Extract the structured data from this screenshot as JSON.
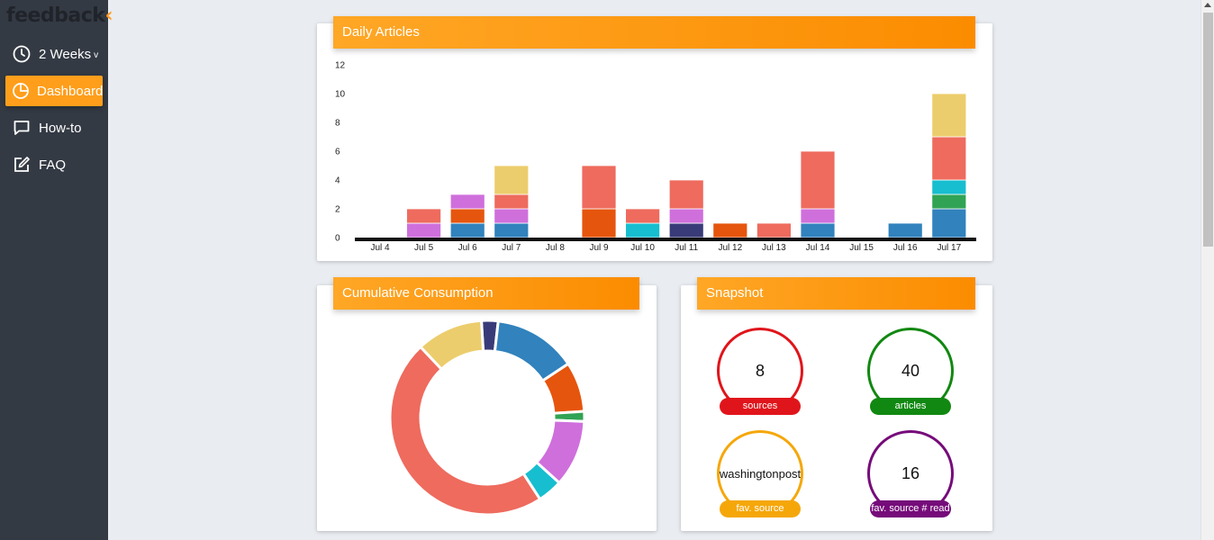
{
  "app": {
    "logo_main": "feedback",
    "logo_accent": "‹"
  },
  "sidebar": {
    "items": [
      {
        "label": "2 Weeks",
        "caret": "v",
        "icon": "clock-icon"
      },
      {
        "label": "Dashboard",
        "icon": "pie-chart-icon",
        "active": true
      },
      {
        "label": "How-to",
        "icon": "chat-bubble-icon"
      },
      {
        "label": "FAQ",
        "icon": "edit-icon"
      }
    ]
  },
  "colors": {
    "accent": "#ff9e1b",
    "sidebar_bg": "#343a44",
    "series": [
      "#3182bd",
      "#e6550d",
      "#31a354",
      "#17becf",
      "#cf6fdc",
      "#ee6b5e",
      "#eccd6d",
      "#393b79"
    ]
  },
  "daily_articles": {
    "title": "Daily Articles",
    "chart_data": {
      "type": "bar",
      "stacked": true,
      "title": "Daily Articles",
      "ylim": [
        0,
        12
      ],
      "yticks": [
        0,
        2,
        4,
        6,
        8,
        10,
        12
      ],
      "categories": [
        "Jul 4",
        "Jul 5",
        "Jul 6",
        "Jul 7",
        "Jul 8",
        "Jul 9",
        "Jul 10",
        "Jul 11",
        "Jul 12",
        "Jul 13",
        "Jul 14",
        "Jul 15",
        "Jul 16",
        "Jul 17"
      ],
      "series": [
        {
          "color": "#3182bd",
          "values": [
            0,
            0,
            1,
            1,
            0,
            0,
            0,
            0,
            0,
            0,
            1,
            0,
            1,
            2
          ]
        },
        {
          "color": "#393b79",
          "values": [
            0,
            0,
            0,
            0,
            0,
            0,
            0,
            1,
            0,
            0,
            0,
            0,
            0,
            0
          ]
        },
        {
          "color": "#e6550d",
          "values": [
            0,
            0,
            1,
            0,
            0,
            2,
            0,
            0,
            1,
            0,
            0,
            0,
            0,
            0
          ]
        },
        {
          "color": "#31a354",
          "values": [
            0,
            0,
            0,
            0,
            0,
            0,
            0,
            0,
            0,
            0,
            0,
            0,
            0,
            1
          ]
        },
        {
          "color": "#17becf",
          "values": [
            0,
            0,
            0,
            0,
            0,
            0,
            1,
            0,
            0,
            0,
            0,
            0,
            0,
            1
          ]
        },
        {
          "color": "#cf6fdc",
          "values": [
            0,
            1,
            1,
            1,
            0,
            0,
            0,
            1,
            0,
            0,
            1,
            0,
            0,
            0
          ]
        },
        {
          "color": "#ee6b5e",
          "values": [
            0,
            1,
            0,
            1,
            0,
            3,
            1,
            2,
            0,
            1,
            4,
            0,
            0,
            3
          ]
        },
        {
          "color": "#eccd6d",
          "values": [
            0,
            0,
            0,
            2,
            0,
            0,
            0,
            0,
            0,
            0,
            0,
            0,
            0,
            3
          ]
        }
      ]
    }
  },
  "cumulative": {
    "title": "Cumulative Consumption",
    "chart_data": {
      "type": "pie",
      "donut": true,
      "slices": [
        {
          "color": "#393b79",
          "value": 1
        },
        {
          "color": "#3182bd",
          "value": 5
        },
        {
          "color": "#e6550d",
          "value": 3
        },
        {
          "color": "#31a354",
          "value": 0.6
        },
        {
          "color": "#cf6fdc",
          "value": 4
        },
        {
          "color": "#17becf",
          "value": 1.5
        },
        {
          "color": "#ee6b5e",
          "value": 17
        },
        {
          "color": "#eccd6d",
          "value": 4
        }
      ]
    }
  },
  "snapshot": {
    "title": "Snapshot",
    "stats": [
      {
        "value": "8",
        "label": "sources",
        "color": "#e0151b"
      },
      {
        "value": "40",
        "label": "articles",
        "color": "#118811"
      },
      {
        "value": "washingtonpost",
        "label": "fav. source",
        "color": "#f5a70a"
      },
      {
        "value": "16",
        "label": "fav. source # read",
        "color": "#760b7a"
      }
    ]
  }
}
